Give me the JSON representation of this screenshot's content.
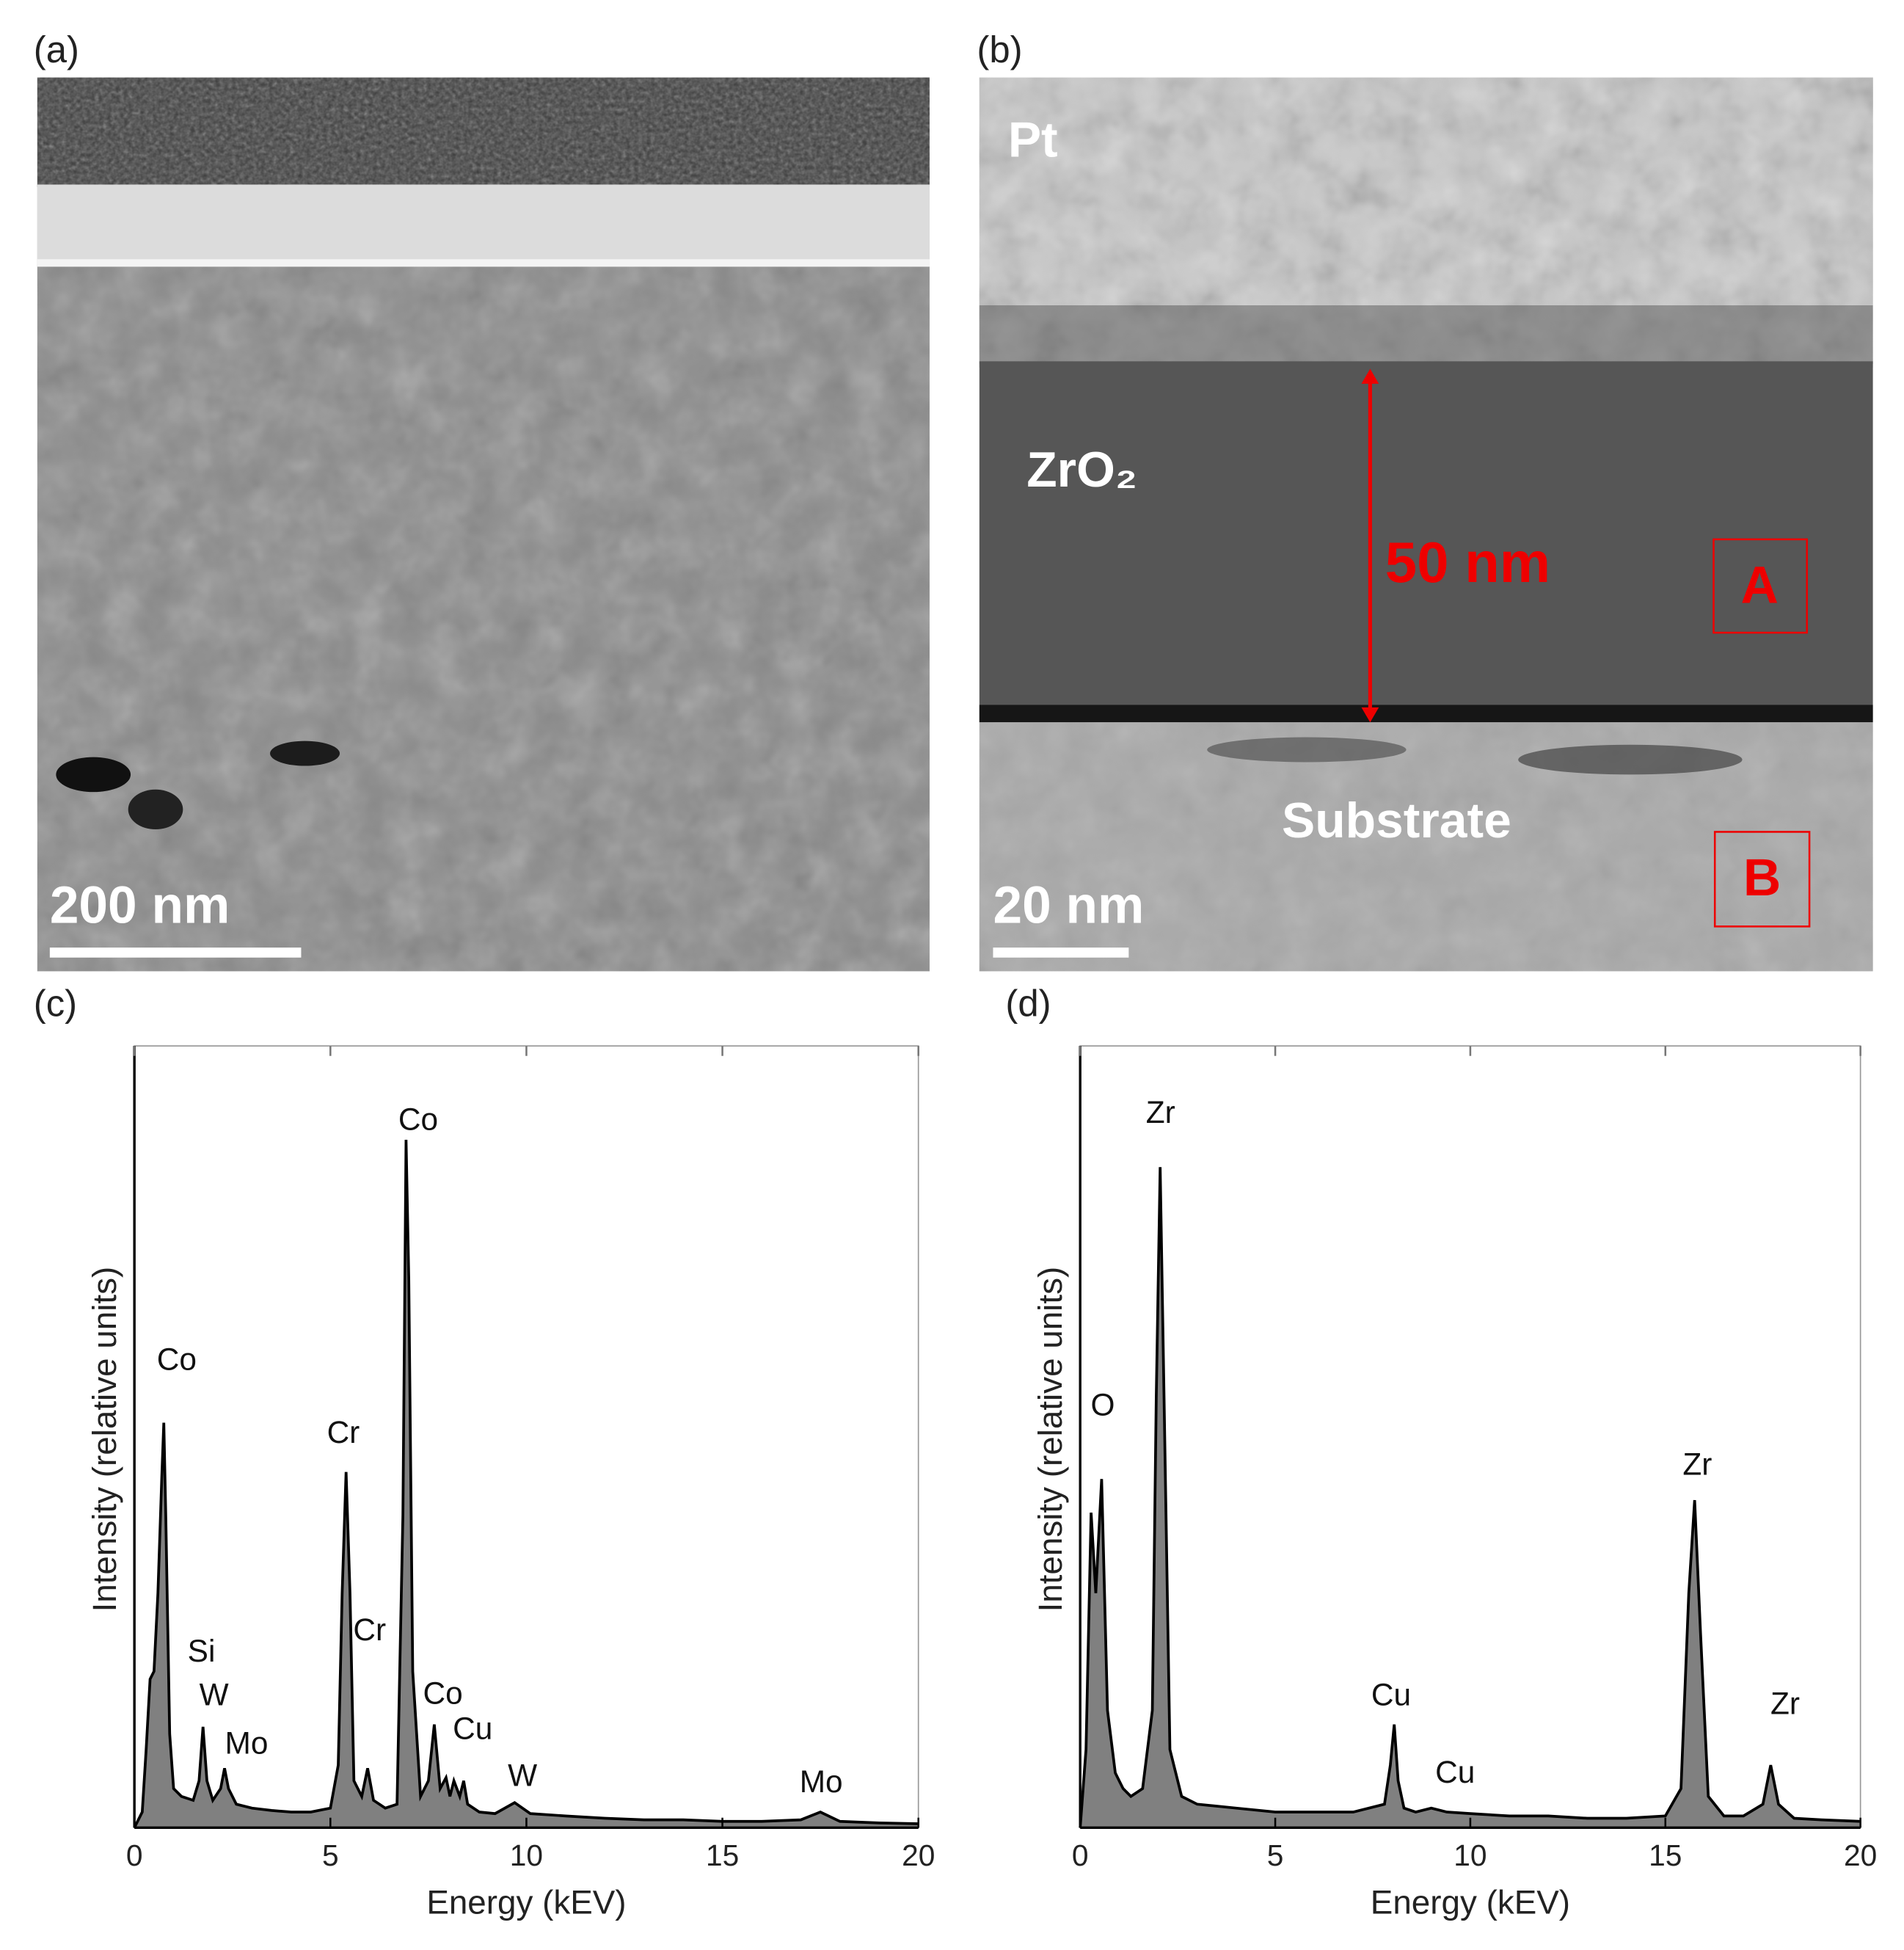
{
  "images": [
    {
      "panel_label": "(a)",
      "scale_bar": "200 nm"
    },
    {
      "panel_label": "(b)",
      "scale_bar": "20 nm",
      "top_layer": "Pt",
      "film": "ZrO₂",
      "thickness": "50 nm",
      "region_a": "A",
      "substrate": "Substrate",
      "region_b": "B"
    }
  ],
  "chart_data": [
    {
      "type": "area",
      "panel_label": "(c)",
      "xlabel": "Energy (kEV)",
      "ylabel": "Intensity (relative units)",
      "xlim": [
        0,
        20
      ],
      "xticks": [
        0,
        5,
        10,
        15,
        20
      ],
      "ylim": [
        0,
        100
      ],
      "color": "#808080",
      "x": [
        0,
        0.2,
        0.3,
        0.4,
        0.5,
        0.6,
        0.7,
        0.75,
        0.8,
        0.9,
        1.0,
        1.2,
        1.5,
        1.65,
        1.75,
        1.85,
        2.0,
        2.2,
        2.3,
        2.4,
        2.6,
        3.0,
        3.5,
        4.0,
        4.5,
        5.0,
        5.2,
        5.3,
        5.4,
        5.5,
        5.6,
        5.8,
        5.95,
        6.1,
        6.4,
        6.7,
        6.85,
        6.93,
        7.0,
        7.1,
        7.3,
        7.5,
        7.65,
        7.8,
        7.95,
        8.05,
        8.15,
        8.3,
        8.4,
        8.5,
        8.8,
        9.2,
        9.7,
        10.1,
        11,
        12,
        13,
        14,
        15,
        16,
        17,
        17.5,
        18,
        19,
        20
      ],
      "values": [
        0,
        2,
        10,
        19,
        20,
        30,
        45,
        51.8,
        40,
        12,
        5,
        4,
        3.5,
        6,
        12.9,
        6,
        3.5,
        5,
        7.6,
        5,
        3,
        2.5,
        2.2,
        2,
        2,
        2.5,
        8,
        30,
        45.5,
        30,
        6,
        4,
        7.6,
        3.5,
        2.5,
        3,
        40,
        88,
        70,
        20,
        4,
        6,
        13.2,
        5,
        6.4,
        4,
        6,
        4,
        6,
        3,
        2,
        1.8,
        3.2,
        1.8,
        1.5,
        1.2,
        1,
        1,
        0.8,
        0.8,
        1,
        2,
        0.8,
        0.6,
        0.5
      ],
      "annotations": [
        "Co",
        "Si",
        "W",
        "Mo",
        "Cr",
        "Cr",
        "Co",
        "Co",
        "Cu",
        "W",
        "Mo"
      ]
    },
    {
      "type": "area",
      "panel_label": "(d)",
      "xlabel": "Energy (kEV)",
      "ylabel": "Intensity (relative units)",
      "xlim": [
        0,
        20
      ],
      "xticks": [
        0,
        5,
        10,
        15,
        20
      ],
      "ylim": [
        0,
        100
      ],
      "color": "#808080",
      "x": [
        0,
        0.15,
        0.28,
        0.4,
        0.55,
        0.7,
        0.9,
        1.1,
        1.3,
        1.6,
        1.85,
        1.95,
        2.05,
        2.15,
        2.3,
        2.6,
        3,
        4,
        5,
        6,
        7,
        7.8,
        7.95,
        8.05,
        8.15,
        8.3,
        8.6,
        9.0,
        9.4,
        10,
        11,
        12,
        13,
        14,
        15,
        15.4,
        15.6,
        15.75,
        15.9,
        16.1,
        16.5,
        17,
        17.5,
        17.7,
        17.9,
        18.3,
        19,
        20
      ],
      "values": [
        0,
        10,
        40.3,
        30,
        44.6,
        15,
        7,
        5,
        4,
        5,
        15,
        55,
        84.5,
        55,
        10,
        4,
        3,
        2.5,
        2,
        2,
        2,
        3,
        8,
        13.2,
        6,
        2.5,
        2,
        2.5,
        2,
        1.8,
        1.5,
        1.5,
        1.2,
        1.2,
        1.5,
        5,
        30,
        41.9,
        25,
        4,
        1.5,
        1.5,
        3,
        8,
        3,
        1.2,
        1,
        0.8
      ],
      "annotations": [
        "Zr",
        "O",
        "Cu",
        "Cu",
        "Zr",
        "Zr"
      ]
    }
  ]
}
